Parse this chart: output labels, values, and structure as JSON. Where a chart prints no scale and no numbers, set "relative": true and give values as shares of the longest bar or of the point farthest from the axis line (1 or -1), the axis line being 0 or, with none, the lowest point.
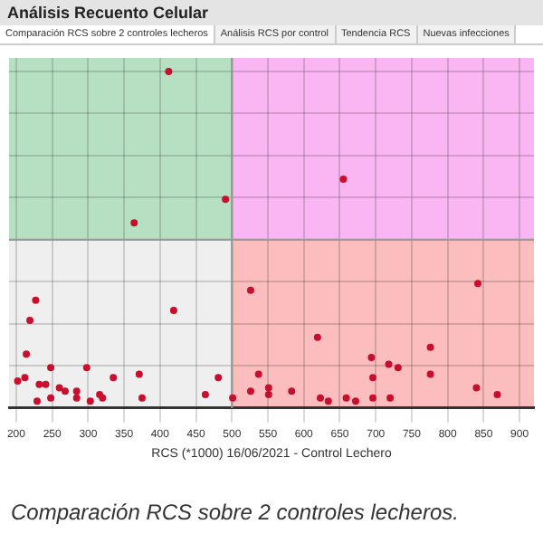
{
  "chart_data": {
    "type": "scatter",
    "title": "Análisis Recuento Celular",
    "xlabel": "RCS (*1000) 16/06/2021 - Control Lechero",
    "annotations": [
      "Comparación RCS sobre 2 controles lecheros",
      "Análisis RCS por control",
      "Tendencia RCS",
      "Nuevas infecciones",
      "Comparación RCS sobre 2 controles lecheros."
    ],
    "relative": true,
    "xlim": [
      190,
      920
    ],
    "xticks": [
      200,
      250,
      300,
      350,
      400,
      450,
      500,
      550,
      600,
      650,
      700,
      750,
      800,
      850,
      900
    ],
    "grid": true,
    "legend": false,
    "marker": "circle",
    "ref_lines": [
      {
        "axis": "x",
        "value": 500,
        "label": null,
        "color": "#999999"
      },
      {
        "axis": "y",
        "value": 0.5,
        "label": null,
        "color": "#999999"
      }
    ],
    "series": [
      {
        "color": "#c8102e",
        "x": [
          412,
          655,
          491,
          364,
          227,
          526,
          842,
          419,
          219,
          214,
          248,
          298,
          335,
          371,
          481,
          537,
          619,
          694,
          718,
          731,
          776,
          776,
          696,
          840,
          869,
          212,
          232,
          241,
          260,
          268,
          284,
          284,
          229,
          248,
          303,
          316,
          320,
          375,
          463,
          501,
          526,
          551,
          551,
          583,
          623,
          634,
          659,
          672,
          720,
          696,
          202
        ],
        "values": [
          1.0,
          0.68,
          0.62,
          0.55,
          0.32,
          0.35,
          0.37,
          0.29,
          0.26,
          0.16,
          0.12,
          0.12,
          0.09,
          0.1,
          0.09,
          0.1,
          0.21,
          0.15,
          0.13,
          0.12,
          0.18,
          0.1,
          0.09,
          0.06,
          0.04,
          0.09,
          0.07,
          0.07,
          0.06,
          0.05,
          0.05,
          0.03,
          0.02,
          0.03,
          0.02,
          0.04,
          0.03,
          0.03,
          0.04,
          0.03,
          0.05,
          0.06,
          0.04,
          0.05,
          0.03,
          0.02,
          0.03,
          0.02,
          0.03,
          0.03,
          0.08
        ]
      }
    ]
  }
}
